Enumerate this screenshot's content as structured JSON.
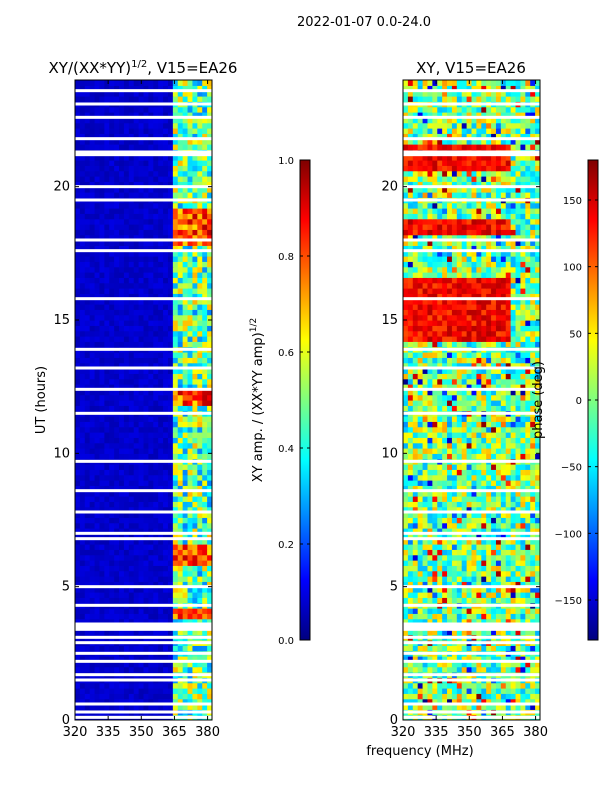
{
  "figure": {
    "suptitle": "2022-01-07 0.0-24.0",
    "xlabel": "frequency (MHz)"
  },
  "colors": {
    "jet": [
      "#00007f",
      "#0000ff",
      "#007fff",
      "#00ffff",
      "#7fff7f",
      "#ffff00",
      "#ff7f00",
      "#ff0000",
      "#7f0000"
    ],
    "axis": "#000000",
    "gap": "#ffffff"
  },
  "chart_data": [
    {
      "type": "heatmap",
      "title": "XY/(XX*YY)^1/2, V15=EA26",
      "title_main": "XY/(XX*YY)",
      "title_sup": "1/2",
      "title_suffix": ", V15=EA26",
      "xlabel": "",
      "ylabel": "UT (hours)",
      "xlim": [
        320,
        382
      ],
      "ylim": [
        0,
        24
      ],
      "xticks": [
        320,
        335,
        350,
        365,
        380
      ],
      "yticks": [
        0,
        5,
        10,
        15,
        20
      ],
      "colorbar": {
        "label": "XY amp. / (XX*YY amp)^1/2",
        "label_main": "XY amp. / (XX*YY amp)",
        "label_sup": "1/2",
        "vlim": [
          0.0,
          1.0
        ],
        "ticks": [
          0.0,
          0.2,
          0.4,
          0.6,
          0.8,
          1.0
        ],
        "tick_labels": [
          "0.0",
          "0.2",
          "0.4",
          "0.6",
          "0.8",
          "1.0"
        ]
      },
      "bright_band_mhz": [
        364,
        383
      ],
      "bright_rows_hours": [
        [
          17.8,
          19.2
        ],
        [
          11.8,
          12.3
        ],
        [
          5.8,
          6.6
        ],
        [
          3.9,
          4.2
        ]
      ]
    },
    {
      "type": "heatmap",
      "title": "XY, V15=EA26",
      "xlabel": "",
      "ylabel": "",
      "xlim": [
        320,
        382
      ],
      "ylim": [
        0,
        24
      ],
      "xticks": [
        320,
        335,
        350,
        365,
        380
      ],
      "yticks": [
        0,
        5,
        10,
        15,
        20
      ],
      "colorbar": {
        "label": "phase (deg)",
        "vlim": [
          -180,
          180
        ],
        "ticks": [
          -150,
          -100,
          -50,
          0,
          50,
          100,
          150
        ],
        "tick_labels": [
          "−150",
          "−100",
          "−50",
          "0",
          "50",
          "100",
          "150"
        ]
      },
      "red_band_hours": [
        [
          14.3,
          16.5
        ],
        [
          18.2,
          18.8
        ],
        [
          20.7,
          21.5
        ]
      ]
    }
  ],
  "gaps_hours": [
    0.1,
    0.3,
    0.6,
    1.5,
    1.7,
    2.2,
    2.5,
    2.9,
    3.1,
    3.4,
    3.5,
    3.6,
    4.3,
    5.0,
    6.8,
    7.0,
    7.8,
    8.6,
    9.7,
    11.5,
    12.4,
    13.2,
    13.9,
    15.8,
    17.6,
    18.0,
    19.5,
    20.0,
    21.2,
    21.3,
    21.8,
    22.6,
    23.1,
    23.6
  ]
}
